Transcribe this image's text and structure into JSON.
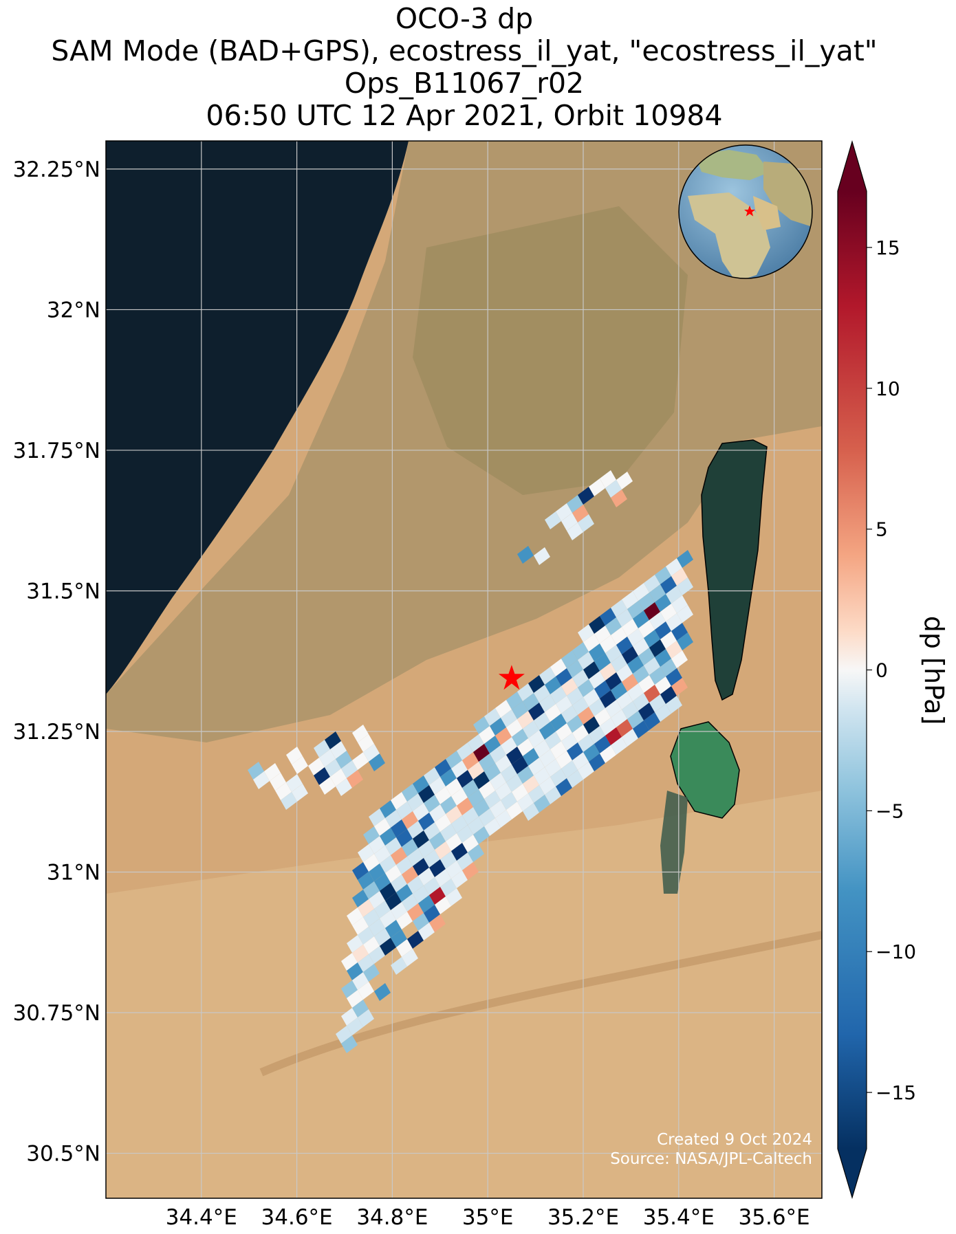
{
  "title": {
    "line1": "OCO-3 dp",
    "line2": "SAM Mode (BAD+GPS), ecostress_il_yat, \"ecostress_il_yat\"",
    "line3": "Ops_B11067_r02",
    "line4": "06:50 UTC 12 Apr 2021, Orbit 10984"
  },
  "map": {
    "lon_range": [
      34.2,
      35.7
    ],
    "lat_range": [
      30.42,
      32.3
    ],
    "lon_ticks": [
      {
        "value": 34.4,
        "label": "34.4°E"
      },
      {
        "value": 34.6,
        "label": "34.6°E"
      },
      {
        "value": 34.8,
        "label": "34.8°E"
      },
      {
        "value": 35.0,
        "label": "35°E"
      },
      {
        "value": 35.2,
        "label": "35.2°E"
      },
      {
        "value": 35.4,
        "label": "35.4°E"
      },
      {
        "value": 35.6,
        "label": "35.6°E"
      }
    ],
    "lat_ticks": [
      {
        "value": 32.25,
        "label": "32.25°N"
      },
      {
        "value": 32.0,
        "label": "32°N"
      },
      {
        "value": 31.75,
        "label": "31.75°N"
      },
      {
        "value": 31.5,
        "label": "31.5°N"
      },
      {
        "value": 31.25,
        "label": "31.25°N"
      },
      {
        "value": 31.0,
        "label": "31°N"
      },
      {
        "value": 30.75,
        "label": "30.75°N"
      },
      {
        "value": 30.5,
        "label": "30.5°N"
      }
    ],
    "target_marker": {
      "lon": 35.05,
      "lat": 31.345,
      "color": "#ff0000"
    },
    "colors": {
      "sea": "#0e1f2d",
      "land_light": "#d4a878",
      "land_green": "#9b8a5c",
      "dead_sea": "#1f4038",
      "evaporation_ponds": "#3a8a5a"
    },
    "credit_line1": "Created 9 Oct 2024",
    "credit_line2": "Source: NASA/JPL-Caltech"
  },
  "colorbar": {
    "label": "dp [hPa]",
    "range": [
      -17,
      17
    ],
    "extend": "both",
    "colormap": "RdBu_r",
    "ticks": [
      {
        "value": 15,
        "label": "15"
      },
      {
        "value": 10,
        "label": "10"
      },
      {
        "value": 5,
        "label": "5"
      },
      {
        "value": 0,
        "label": "0"
      },
      {
        "value": -5,
        "label": "−5"
      },
      {
        "value": -10,
        "label": "−10"
      },
      {
        "value": -15,
        "label": "−15"
      }
    ]
  },
  "inset_globe": {
    "marker_color": "#ff0000"
  }
}
